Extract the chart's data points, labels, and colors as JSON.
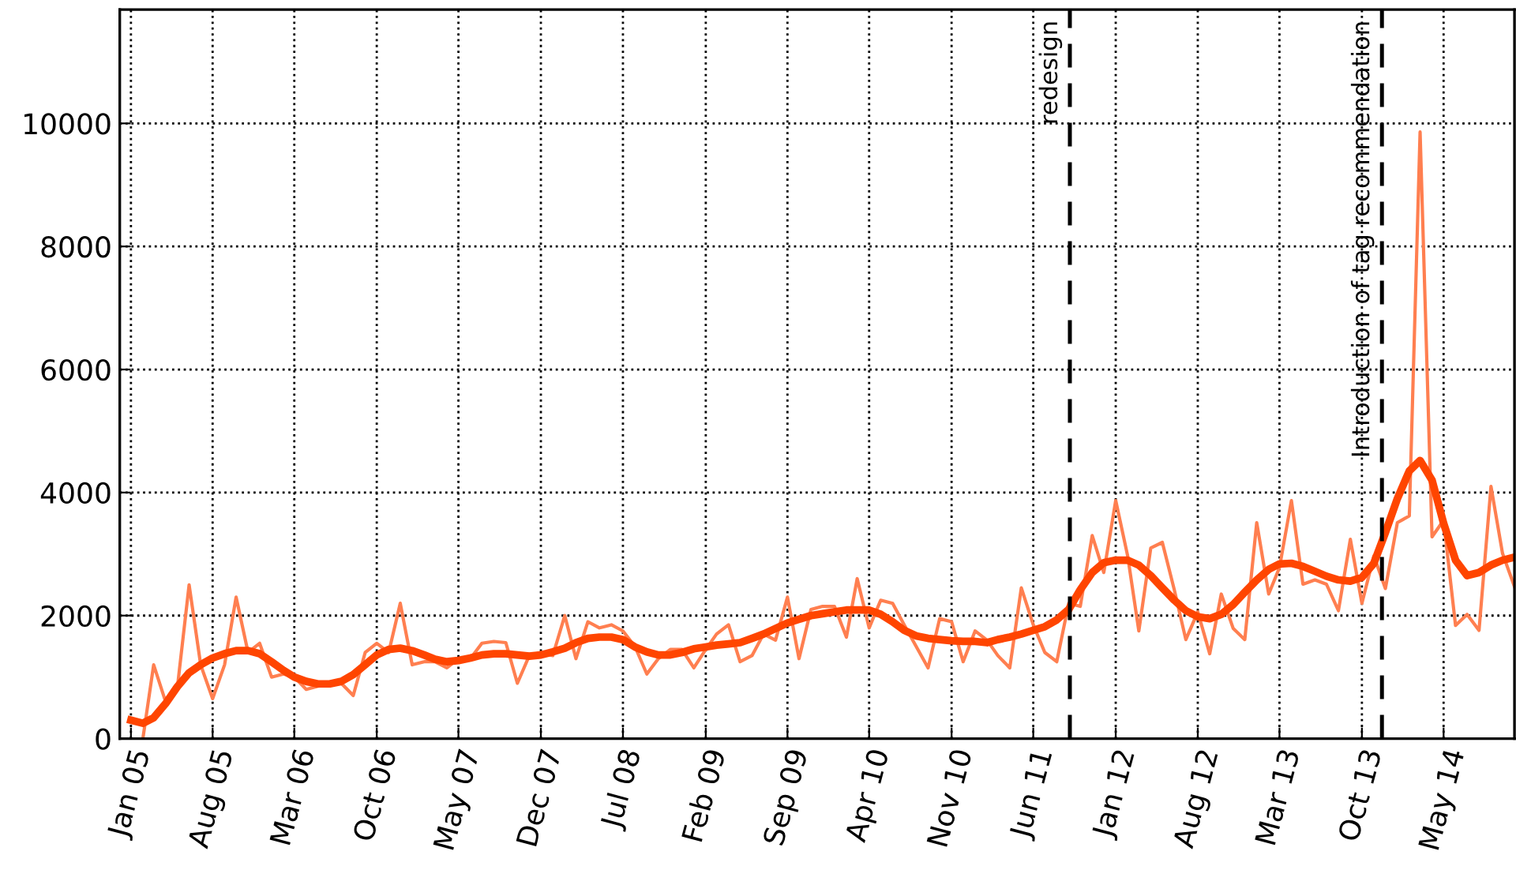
{
  "chart_data": {
    "type": "line",
    "x": [
      "2005-01",
      "2005-02",
      "2005-03",
      "2005-04",
      "2005-05",
      "2005-06",
      "2005-07",
      "2005-08",
      "2005-09",
      "2005-10",
      "2005-11",
      "2005-12",
      "2006-01",
      "2006-02",
      "2006-03",
      "2006-04",
      "2006-05",
      "2006-06",
      "2006-07",
      "2006-08",
      "2006-09",
      "2006-10",
      "2006-11",
      "2006-12",
      "2007-01",
      "2007-02",
      "2007-03",
      "2007-04",
      "2007-05",
      "2007-06",
      "2007-07",
      "2007-08",
      "2007-09",
      "2007-10",
      "2007-11",
      "2007-12",
      "2008-01",
      "2008-02",
      "2008-03",
      "2008-04",
      "2008-05",
      "2008-06",
      "2008-07",
      "2008-08",
      "2008-09",
      "2008-10",
      "2008-11",
      "2008-12",
      "2009-01",
      "2009-02",
      "2009-03",
      "2009-04",
      "2009-05",
      "2009-06",
      "2009-07",
      "2009-08",
      "2009-09",
      "2009-10",
      "2009-11",
      "2009-12",
      "2010-01",
      "2010-02",
      "2010-03",
      "2010-04",
      "2010-05",
      "2010-06",
      "2010-07",
      "2010-08",
      "2010-09",
      "2010-10",
      "2010-11",
      "2010-12",
      "2011-01",
      "2011-02",
      "2011-03",
      "2011-04",
      "2011-05",
      "2011-06",
      "2011-07",
      "2011-08",
      "2011-09",
      "2011-10",
      "2011-11",
      "2011-12",
      "2012-01",
      "2012-02",
      "2012-03",
      "2012-04",
      "2012-05",
      "2012-06",
      "2012-07",
      "2012-08",
      "2012-09",
      "2012-10",
      "2012-11",
      "2012-12",
      "2013-01",
      "2013-02",
      "2013-03",
      "2013-04",
      "2013-05",
      "2013-06",
      "2013-07",
      "2013-08",
      "2013-09",
      "2013-10",
      "2013-11",
      "2013-12",
      "2014-01",
      "2014-02",
      "2014-03",
      "2014-04",
      "2014-05",
      "2014-06",
      "2014-07",
      "2014-08",
      "2014-09",
      "2014-10",
      "2014-11"
    ],
    "series": [
      {
        "color": "#ff7f50",
        "values": [
          null,
          0,
          1200,
          600,
          800,
          2500,
          1200,
          650,
          1200,
          2300,
          1400,
          1550,
          1000,
          1050,
          1000,
          800,
          850,
          900,
          900,
          700,
          1400,
          1550,
          1400,
          2200,
          1200,
          1250,
          1250,
          1150,
          1300,
          1300,
          1550,
          1580,
          1560,
          900,
          1350,
          1400,
          1350,
          2000,
          1300,
          1900,
          1800,
          1850,
          1750,
          1500,
          1050,
          1300,
          1450,
          1450,
          1150,
          1450,
          1700,
          1850,
          1250,
          1350,
          1700,
          1600,
          2300,
          1300,
          2100,
          2150,
          2150,
          1650,
          2600,
          1800,
          2250,
          2200,
          1850,
          1500,
          1150,
          1950,
          1900,
          1250,
          1750,
          1600,
          1350,
          1150,
          2450,
          1850,
          1400,
          1250,
          2200,
          2150,
          3300,
          2700,
          3870,
          2970,
          1750,
          3100,
          3190,
          2420,
          1610,
          2060,
          1380,
          2350,
          1790,
          1610,
          3510,
          2350,
          2780,
          3870,
          2510,
          2580,
          2510,
          2080,
          3240,
          2200,
          2970,
          2440,
          3510,
          3620,
          9860,
          3280,
          3550,
          1840,
          2020,
          1760,
          4100,
          3010,
          2470
        ]
      },
      {
        "color": "#ff4500",
        "values": [
          300,
          250,
          340,
          570,
          840,
          1070,
          1200,
          1310,
          1380,
          1430,
          1430,
          1380,
          1250,
          1110,
          1000,
          930,
          890,
          890,
          930,
          1040,
          1200,
          1360,
          1450,
          1470,
          1430,
          1360,
          1290,
          1250,
          1270,
          1310,
          1360,
          1380,
          1380,
          1360,
          1340,
          1360,
          1410,
          1470,
          1560,
          1630,
          1650,
          1650,
          1610,
          1490,
          1410,
          1360,
          1360,
          1400,
          1460,
          1490,
          1520,
          1540,
          1560,
          1630,
          1700,
          1790,
          1880,
          1940,
          2000,
          2030,
          2060,
          2090,
          2090,
          2090,
          2020,
          1900,
          1760,
          1670,
          1630,
          1610,
          1590,
          1580,
          1580,
          1560,
          1610,
          1650,
          1700,
          1760,
          1820,
          1930,
          2100,
          2420,
          2700,
          2860,
          2900,
          2900,
          2820,
          2650,
          2450,
          2250,
          2080,
          1980,
          1950,
          2020,
          2180,
          2380,
          2580,
          2750,
          2840,
          2850,
          2800,
          2720,
          2640,
          2580,
          2560,
          2620,
          2850,
          3350,
          3900,
          4350,
          4520,
          4200,
          3500,
          2900,
          2650,
          2700,
          2820,
          2900,
          2950
        ]
      }
    ],
    "xlim": [
      "2004-12-03",
      "2014-11-01"
    ],
    "xticks": [
      {
        "value": "2005-01",
        "label": "Jan 05"
      },
      {
        "value": "2005-08",
        "label": "Aug 05"
      },
      {
        "value": "2006-03",
        "label": "Mar 06"
      },
      {
        "value": "2006-10",
        "label": "Oct 06"
      },
      {
        "value": "2007-05",
        "label": "May 07"
      },
      {
        "value": "2007-12",
        "label": "Dec 07"
      },
      {
        "value": "2008-07",
        "label": "Jul 08"
      },
      {
        "value": "2009-02",
        "label": "Feb 09"
      },
      {
        "value": "2009-09",
        "label": "Sep 09"
      },
      {
        "value": "2010-04",
        "label": "Apr 10"
      },
      {
        "value": "2010-11",
        "label": "Nov 10"
      },
      {
        "value": "2011-06",
        "label": "Jun 11"
      },
      {
        "value": "2012-01",
        "label": "Jan 12"
      },
      {
        "value": "2012-08",
        "label": "Aug 12"
      },
      {
        "value": "2013-03",
        "label": "Mar 13"
      },
      {
        "value": "2013-10",
        "label": "Oct 13"
      },
      {
        "value": "2014-05",
        "label": "May 14"
      }
    ],
    "ylim": [
      0,
      11850
    ],
    "yticks": [
      0,
      2000,
      4000,
      6000,
      8000,
      10000
    ],
    "grid": true,
    "line_style": "solid",
    "ref_lines": [
      {
        "axis": "x",
        "value": "2011-09-04",
        "label": "redesign",
        "color": "#000000",
        "line_style": "dashed"
      },
      {
        "axis": "x",
        "value": "2013-11-22",
        "label": "Introduction of tag recommendation",
        "color": "#000000",
        "line_style": "dashed"
      }
    ]
  }
}
